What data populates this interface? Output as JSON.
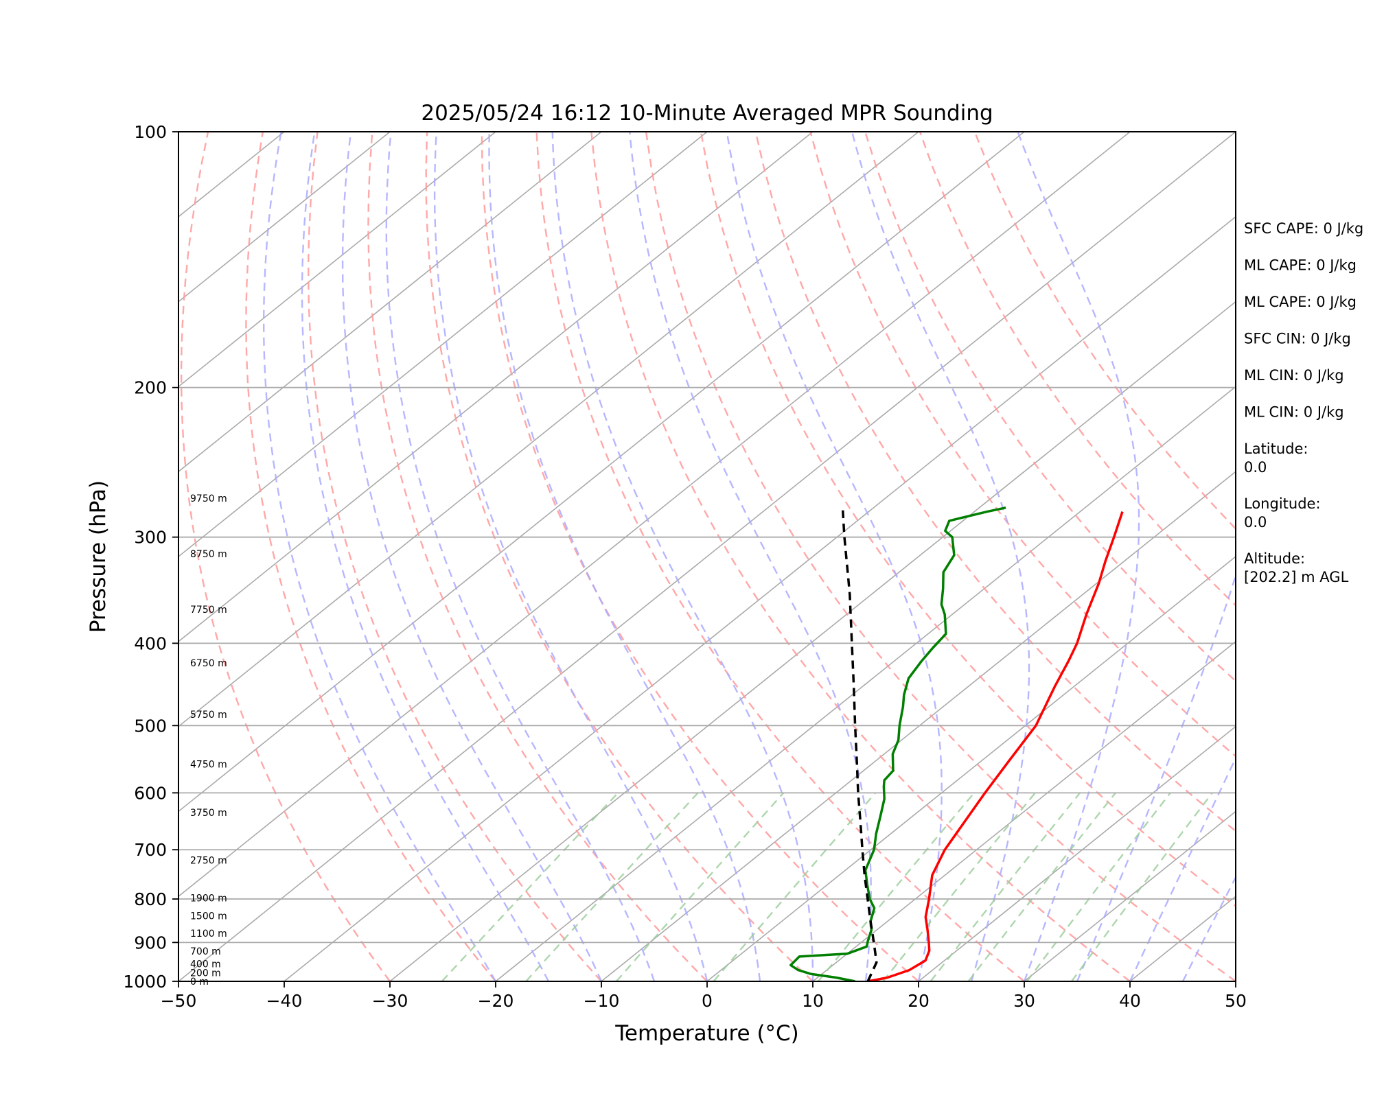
{
  "chart_data": {
    "type": "line",
    "chart_kind": "skew-T log-p sounding",
    "title": "2025/05/24 16:12 10-Minute Averaged MPR Sounding",
    "xlabel": "Temperature (°C)",
    "ylabel": "Pressure (hPa)",
    "xlim": [
      -50,
      50
    ],
    "ylim": [
      1000,
      100
    ],
    "y_scale": "log",
    "x_ticks": [
      "−50",
      "−40",
      "−30",
      "−20",
      "−10",
      "0",
      "10",
      "20",
      "30",
      "40",
      "50"
    ],
    "y_ticks": [
      "100",
      "200",
      "300",
      "400",
      "500",
      "600",
      "700",
      "800",
      "900",
      "1000"
    ],
    "grid": "horizontal at y ticks",
    "series": [
      {
        "color": "#ff0000",
        "style": "solid",
        "points": [
          {
            "p": 1000,
            "t": 15.2
          },
          {
            "p": 990,
            "t": 16.6
          },
          {
            "p": 970,
            "t": 17.8
          },
          {
            "p": 945,
            "t": 18.2
          },
          {
            "p": 920,
            "t": 17.4
          },
          {
            "p": 900,
            "t": 16.4
          },
          {
            "p": 870,
            "t": 14.8
          },
          {
            "p": 840,
            "t": 13.1
          },
          {
            "p": 800,
            "t": 11.3
          },
          {
            "p": 750,
            "t": 8.8
          },
          {
            "p": 700,
            "t": 7.0
          },
          {
            "p": 650,
            "t": 5.6
          },
          {
            "p": 600,
            "t": 4.1
          },
          {
            "p": 550,
            "t": 2.6
          },
          {
            "p": 500,
            "t": 1.0
          },
          {
            "p": 450,
            "t": -1.8
          },
          {
            "p": 420,
            "t": -3.5
          },
          {
            "p": 400,
            "t": -4.8
          },
          {
            "p": 370,
            "t": -7.3
          },
          {
            "p": 340,
            "t": -9.8
          },
          {
            "p": 320,
            "t": -11.8
          },
          {
            "p": 300,
            "t": -13.8
          },
          {
            "p": 280,
            "t": -16.0
          }
        ]
      },
      {
        "color": "#007f00",
        "style": "solid",
        "points": [
          {
            "p": 1000,
            "t": 14.0
          },
          {
            "p": 990,
            "t": 11.8
          },
          {
            "p": 980,
            "t": 8.9
          },
          {
            "p": 970,
            "t": 7.3
          },
          {
            "p": 962,
            "t": 6.5
          },
          {
            "p": 957,
            "t": 6.0
          },
          {
            "p": 935,
            "t": 5.8
          },
          {
            "p": 928,
            "t": 10.0
          },
          {
            "p": 910,
            "t": 11.0
          },
          {
            "p": 895,
            "t": 10.4
          },
          {
            "p": 870,
            "t": 9.5
          },
          {
            "p": 850,
            "t": 8.4
          },
          {
            "p": 820,
            "t": 7.2
          },
          {
            "p": 800,
            "t": 5.7
          },
          {
            "p": 770,
            "t": 3.8
          },
          {
            "p": 740,
            "t": 1.9
          },
          {
            "p": 700,
            "t": 0.3
          },
          {
            "p": 670,
            "t": -1.4
          },
          {
            "p": 640,
            "t": -3.0
          },
          {
            "p": 610,
            "t": -4.7
          },
          {
            "p": 590,
            "t": -6.2
          },
          {
            "p": 580,
            "t": -6.9
          },
          {
            "p": 565,
            "t": -7.2
          },
          {
            "p": 540,
            "t": -9.2
          },
          {
            "p": 520,
            "t": -10.3
          },
          {
            "p": 500,
            "t": -11.9
          },
          {
            "p": 475,
            "t": -13.8
          },
          {
            "p": 460,
            "t": -15.1
          },
          {
            "p": 440,
            "t": -16.6
          },
          {
            "p": 420,
            "t": -17.4
          },
          {
            "p": 405,
            "t": -17.9
          },
          {
            "p": 390,
            "t": -18.3
          },
          {
            "p": 370,
            "t": -20.7
          },
          {
            "p": 360,
            "t": -22.2
          },
          {
            "p": 345,
            "t": -23.9
          },
          {
            "p": 330,
            "t": -25.8
          },
          {
            "p": 315,
            "t": -26.8
          },
          {
            "p": 300,
            "t": -29.1
          },
          {
            "p": 295,
            "t": -30.5
          },
          {
            "p": 287,
            "t": -31.3
          },
          {
            "p": 280,
            "t": -28.8
          },
          {
            "p": 277,
            "t": -27.5
          }
        ]
      },
      {
        "color": "#000000",
        "style": "dashed",
        "points": [
          {
            "p": 1000,
            "t": 15.2
          },
          {
            "p": 950,
            "t": 13.8
          },
          {
            "p": 900,
            "t": 11.2
          },
          {
            "p": 850,
            "t": 8.4
          },
          {
            "p": 800,
            "t": 5.5
          },
          {
            "p": 750,
            "t": 2.4
          },
          {
            "p": 700,
            "t": -0.8
          },
          {
            "p": 650,
            "t": -4.2
          },
          {
            "p": 600,
            "t": -7.9
          },
          {
            "p": 550,
            "t": -11.8
          },
          {
            "p": 500,
            "t": -16.1
          },
          {
            "p": 450,
            "t": -20.8
          },
          {
            "p": 400,
            "t": -26.1
          },
          {
            "p": 350,
            "t": -32.1
          },
          {
            "p": 300,
            "t": -39.3
          },
          {
            "p": 279,
            "t": -42.6
          }
        ]
      }
    ],
    "height_labels": [
      {
        "p": 1000,
        "label": "0 m"
      },
      {
        "p": 977,
        "label": "200 m"
      },
      {
        "p": 954,
        "label": "400 m"
      },
      {
        "p": 921,
        "label": "700 m"
      },
      {
        "p": 878,
        "label": "1100 m"
      },
      {
        "p": 837,
        "label": "1500 m"
      },
      {
        "p": 798,
        "label": "1900 m"
      },
      {
        "p": 720,
        "label": "2750 m"
      },
      {
        "p": 633,
        "label": "3750 m"
      },
      {
        "p": 555,
        "label": "4750 m"
      },
      {
        "p": 485,
        "label": "5750 m"
      },
      {
        "p": 422,
        "label": "6750 m"
      },
      {
        "p": 365,
        "label": "7750 m"
      },
      {
        "p": 314,
        "label": "8750 m"
      },
      {
        "p": 270,
        "label": "9750 m"
      }
    ],
    "background_lines": {
      "isotherms_color": "#aaaaaa",
      "dry_adiabats_color": "#ff9999",
      "moist_adiabats_color": "#aaaaff",
      "mixing_ratio_color": "#99cc99"
    }
  },
  "stats": [
    {
      "text": "SFC CAPE: 0 J/kg"
    },
    {
      "text": "ML CAPE: 0 J/kg"
    },
    {
      "text": "ML CAPE: 0 J/kg"
    },
    {
      "text": "SFC CIN: 0 J/kg"
    },
    {
      "text": "ML CIN: 0 J/kg"
    },
    {
      "text": "ML CIN: 0 J/kg"
    },
    {
      "line1": "Latitude:",
      "line2": "0.0"
    },
    {
      "line1": "Longitude:",
      "line2": "0.0"
    },
    {
      "line1": "Altitude:",
      "line2": "[202.2] m AGL"
    }
  ]
}
